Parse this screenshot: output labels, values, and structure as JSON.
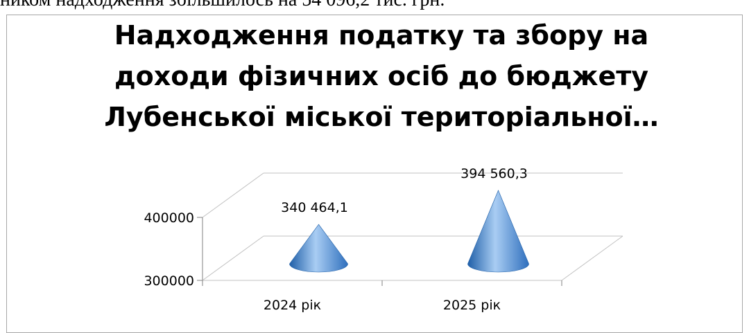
{
  "page": {
    "top_text": "ником надходження збільшилось на 54 096,2 тис. грн."
  },
  "chart_data": {
    "type": "bar",
    "shape": "cone",
    "title_lines": [
      "Надходження податку та збору на",
      "доходи фізичних осіб до бюджету",
      "Лубенської міської територіальної…"
    ],
    "categories": [
      "2024 рік",
      "2025 рік"
    ],
    "values": [
      340464.1,
      394560.3
    ],
    "data_labels": [
      "340 464,1",
      "394 560,3"
    ],
    "y_ticks": [
      "300000",
      "400000"
    ],
    "ylim": [
      300000,
      400000
    ],
    "xlabel": "",
    "ylabel": "",
    "grid": true,
    "legend": "none",
    "colors": {
      "cone": "#4f8fd6",
      "cone_light": "#a9cdf3",
      "cone_dark": "#1f5fa8",
      "grid": "#c0c0c0"
    }
  }
}
